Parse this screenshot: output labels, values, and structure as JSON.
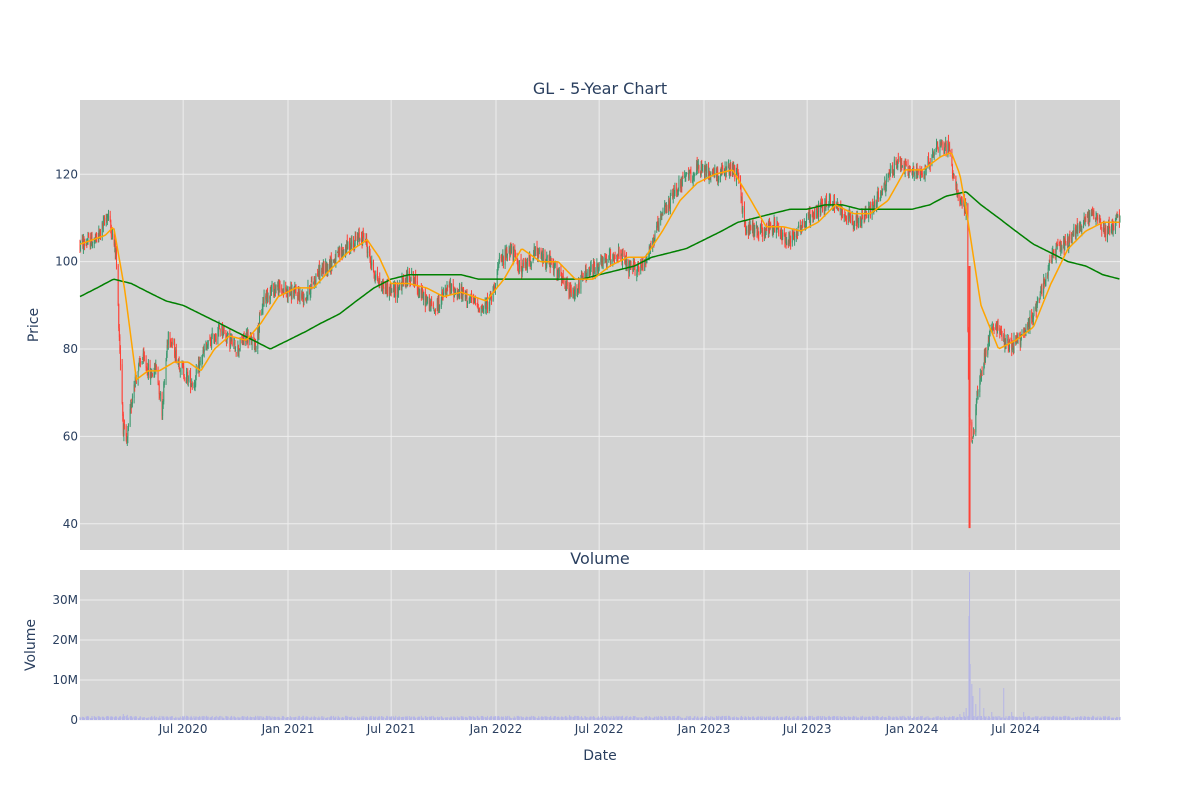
{
  "chart_data": [
    {
      "type": "candlestick",
      "title": "GL - 5-Year Chart",
      "xlabel": "",
      "ylabel": "Price",
      "ylim": [
        34,
        137
      ],
      "y_ticks": [
        40,
        60,
        80,
        100,
        120
      ],
      "x_range": [
        "2020-01-02",
        "2024-12-31"
      ],
      "grid": true,
      "colors": {
        "up": "#3d9970",
        "down": "#ff4136",
        "ma_short": "#ffa500",
        "ma_long": "#008000",
        "plot_bg": "#d3d3d3"
      },
      "series": [
        {
          "kind": "ohlc"
        },
        {
          "kind": "line"
        },
        {
          "kind": "line"
        }
      ],
      "price_path": [
        [
          "2020-01-02",
          104
        ],
        [
          "2020-02-01",
          105
        ],
        [
          "2020-02-20",
          111
        ],
        [
          "2020-03-05",
          102
        ],
        [
          "2020-03-12",
          80
        ],
        [
          "2020-03-18",
          62
        ],
        [
          "2020-03-24",
          58
        ],
        [
          "2020-04-05",
          72
        ],
        [
          "2020-04-20",
          78
        ],
        [
          "2020-05-05",
          74
        ],
        [
          "2020-05-15",
          76
        ],
        [
          "2020-05-25",
          66
        ],
        [
          "2020-06-05",
          84
        ],
        [
          "2020-06-20",
          78
        ],
        [
          "2020-07-05",
          74
        ],
        [
          "2020-07-20",
          72
        ],
        [
          "2020-08-05",
          79
        ],
        [
          "2020-08-20",
          82
        ],
        [
          "2020-09-05",
          85
        ],
        [
          "2020-09-20",
          82
        ],
        [
          "2020-10-05",
          80
        ],
        [
          "2020-10-20",
          83
        ],
        [
          "2020-11-05",
          81
        ],
        [
          "2020-11-20",
          92
        ],
        [
          "2020-12-10",
          94
        ],
        [
          "2021-01-05",
          93
        ],
        [
          "2021-02-01",
          92
        ],
        [
          "2021-02-20",
          97
        ],
        [
          "2021-03-20",
          100
        ],
        [
          "2021-04-20",
          104
        ],
        [
          "2021-05-15",
          106
        ],
        [
          "2021-05-28",
          99
        ],
        [
          "2021-06-10",
          95
        ],
        [
          "2021-07-05",
          93
        ],
        [
          "2021-08-05",
          97
        ],
        [
          "2021-08-25",
          92
        ],
        [
          "2021-09-15",
          89
        ],
        [
          "2021-10-10",
          94
        ],
        [
          "2021-11-10",
          92
        ],
        [
          "2021-12-10",
          89
        ],
        [
          "2021-12-25",
          92
        ],
        [
          "2022-01-05",
          99
        ],
        [
          "2022-01-25",
          103
        ],
        [
          "2022-02-15",
          98
        ],
        [
          "2022-03-10",
          102
        ],
        [
          "2022-04-05",
          100
        ],
        [
          "2022-04-25",
          96
        ],
        [
          "2022-05-15",
          92
        ],
        [
          "2022-06-05",
          97
        ],
        [
          "2022-07-01",
          99
        ],
        [
          "2022-08-01",
          102
        ],
        [
          "2022-08-25",
          98
        ],
        [
          "2022-09-15",
          99
        ],
        [
          "2022-10-01",
          104
        ],
        [
          "2022-10-25",
          112
        ],
        [
          "2022-11-20",
          118
        ],
        [
          "2022-12-20",
          121
        ],
        [
          "2023-01-20",
          120
        ],
        [
          "2023-02-20",
          121
        ],
        [
          "2023-03-05",
          119
        ],
        [
          "2023-03-12",
          108
        ],
        [
          "2023-04-05",
          107
        ],
        [
          "2023-05-05",
          108
        ],
        [
          "2023-05-28",
          105
        ],
        [
          "2023-06-20",
          108
        ],
        [
          "2023-07-20",
          112
        ],
        [
          "2023-08-10",
          114
        ],
        [
          "2023-09-05",
          111
        ],
        [
          "2023-10-01",
          109
        ],
        [
          "2023-10-20",
          112
        ],
        [
          "2023-11-10",
          116
        ],
        [
          "2023-12-05",
          123
        ],
        [
          "2024-01-05",
          120
        ],
        [
          "2024-01-25",
          121
        ],
        [
          "2024-02-15",
          127
        ],
        [
          "2024-03-05",
          126
        ],
        [
          "2024-03-20",
          116
        ],
        [
          "2024-04-05",
          112
        ],
        [
          "2024-04-10",
          65
        ],
        [
          "2024-04-16",
          58
        ],
        [
          "2024-04-25",
          70
        ],
        [
          "2024-05-10",
          80
        ],
        [
          "2024-05-25",
          86
        ],
        [
          "2024-06-10",
          82
        ],
        [
          "2024-06-25",
          81
        ],
        [
          "2024-07-15",
          83
        ],
        [
          "2024-08-01",
          88
        ],
        [
          "2024-08-20",
          96
        ],
        [
          "2024-09-10",
          103
        ],
        [
          "2024-10-05",
          105
        ],
        [
          "2024-10-25",
          109
        ],
        [
          "2024-11-15",
          111
        ],
        [
          "2024-12-05",
          107
        ],
        [
          "2024-12-31",
          110
        ]
      ],
      "ma_short_path": [
        [
          "2020-01-02",
          104
        ],
        [
          "2020-02-15",
          106
        ],
        [
          "2020-03-01",
          108
        ],
        [
          "2020-03-20",
          94
        ],
        [
          "2020-04-10",
          73
        ],
        [
          "2020-04-30",
          75
        ],
        [
          "2020-05-20",
          75
        ],
        [
          "2020-06-15",
          77
        ],
        [
          "2020-07-10",
          77
        ],
        [
          "2020-08-01",
          75
        ],
        [
          "2020-08-25",
          80
        ],
        [
          "2020-09-20",
          83
        ],
        [
          "2020-10-20",
          82
        ],
        [
          "2020-11-15",
          86
        ],
        [
          "2020-12-15",
          92
        ],
        [
          "2021-01-15",
          94
        ],
        [
          "2021-02-15",
          94
        ],
        [
          "2021-03-15",
          98
        ],
        [
          "2021-04-15",
          102
        ],
        [
          "2021-05-20",
          105
        ],
        [
          "2021-06-10",
          101
        ],
        [
          "2021-07-01",
          95
        ],
        [
          "2021-08-01",
          95
        ],
        [
          "2021-09-01",
          94
        ],
        [
          "2021-10-01",
          92
        ],
        [
          "2021-11-01",
          93
        ],
        [
          "2021-12-15",
          91
        ],
        [
          "2022-01-15",
          96
        ],
        [
          "2022-02-15",
          103
        ],
        [
          "2022-03-20",
          100
        ],
        [
          "2022-04-20",
          100
        ],
        [
          "2022-05-20",
          96
        ],
        [
          "2022-06-20",
          96
        ],
        [
          "2022-07-20",
          99
        ],
        [
          "2022-08-20",
          101
        ],
        [
          "2022-09-20",
          101
        ],
        [
          "2022-10-20",
          107
        ],
        [
          "2022-11-20",
          114
        ],
        [
          "2022-12-20",
          118
        ],
        [
          "2023-01-20",
          120
        ],
        [
          "2023-02-20",
          121
        ],
        [
          "2023-03-20",
          115
        ],
        [
          "2023-04-20",
          108
        ],
        [
          "2023-05-20",
          108
        ],
        [
          "2023-06-20",
          107
        ],
        [
          "2023-07-20",
          109
        ],
        [
          "2023-08-20",
          113
        ],
        [
          "2023-09-20",
          111
        ],
        [
          "2023-10-20",
          111
        ],
        [
          "2023-11-20",
          114
        ],
        [
          "2023-12-20",
          121
        ],
        [
          "2024-01-20",
          121
        ],
        [
          "2024-02-20",
          124
        ],
        [
          "2024-03-10",
          125
        ],
        [
          "2024-03-25",
          120
        ],
        [
          "2024-04-05",
          112
        ],
        [
          "2024-05-01",
          90
        ],
        [
          "2024-06-01",
          80
        ],
        [
          "2024-07-01",
          82
        ],
        [
          "2024-08-01",
          85
        ],
        [
          "2024-09-01",
          95
        ],
        [
          "2024-10-01",
          103
        ],
        [
          "2024-11-01",
          107
        ],
        [
          "2024-12-01",
          109
        ],
        [
          "2024-12-31",
          109
        ]
      ],
      "ma_long_path": [
        [
          "2020-01-02",
          92
        ],
        [
          "2020-02-01",
          94
        ],
        [
          "2020-03-01",
          96
        ],
        [
          "2020-04-01",
          95
        ],
        [
          "2020-05-01",
          93
        ],
        [
          "2020-06-01",
          91
        ],
        [
          "2020-07-01",
          90
        ],
        [
          "2020-08-01",
          88
        ],
        [
          "2020-09-01",
          86
        ],
        [
          "2020-10-01",
          84
        ],
        [
          "2020-11-01",
          82
        ],
        [
          "2020-12-01",
          80
        ],
        [
          "2021-01-01",
          82
        ],
        [
          "2021-02-01",
          84
        ],
        [
          "2021-03-01",
          86
        ],
        [
          "2021-04-01",
          88
        ],
        [
          "2021-05-01",
          91
        ],
        [
          "2021-06-01",
          94
        ],
        [
          "2021-07-01",
          96
        ],
        [
          "2021-08-01",
          97
        ],
        [
          "2021-09-01",
          97
        ],
        [
          "2021-10-01",
          97
        ],
        [
          "2021-11-01",
          97
        ],
        [
          "2021-12-01",
          96
        ],
        [
          "2022-01-01",
          96
        ],
        [
          "2022-02-01",
          96
        ],
        [
          "2022-03-01",
          96
        ],
        [
          "2022-04-01",
          96
        ],
        [
          "2022-05-01",
          96
        ],
        [
          "2022-06-01",
          96
        ],
        [
          "2022-07-01",
          97
        ],
        [
          "2022-08-01",
          98
        ],
        [
          "2022-09-01",
          99
        ],
        [
          "2022-10-01",
          101
        ],
        [
          "2022-11-01",
          102
        ],
        [
          "2022-12-01",
          103
        ],
        [
          "2023-01-01",
          105
        ],
        [
          "2023-02-01",
          107
        ],
        [
          "2023-03-01",
          109
        ],
        [
          "2023-04-01",
          110
        ],
        [
          "2023-05-01",
          111
        ],
        [
          "2023-06-01",
          112
        ],
        [
          "2023-07-01",
          112
        ],
        [
          "2023-08-01",
          113
        ],
        [
          "2023-09-01",
          113
        ],
        [
          "2023-10-01",
          112
        ],
        [
          "2023-11-01",
          112
        ],
        [
          "2023-12-01",
          112
        ],
        [
          "2024-01-01",
          112
        ],
        [
          "2024-02-01",
          113
        ],
        [
          "2024-03-01",
          115
        ],
        [
          "2024-04-05",
          116
        ],
        [
          "2024-05-01",
          113
        ],
        [
          "2024-06-01",
          110
        ],
        [
          "2024-07-01",
          107
        ],
        [
          "2024-08-01",
          104
        ],
        [
          "2024-09-01",
          102
        ],
        [
          "2024-10-01",
          100
        ],
        [
          "2024-11-01",
          99
        ],
        [
          "2024-12-01",
          97
        ],
        [
          "2024-12-31",
          96
        ]
      ]
    },
    {
      "type": "bar",
      "title": "Volume",
      "xlabel": "Date",
      "ylabel": "Volume",
      "ylim": [
        0,
        37500000
      ],
      "y_ticks": [
        0,
        10000000,
        20000000,
        30000000
      ],
      "y_tick_labels": [
        "0",
        "10M",
        "20M",
        "30M"
      ],
      "x_ticks": [
        "2020-07-01",
        "2021-01-01",
        "2021-07-01",
        "2022-01-01",
        "2022-07-01",
        "2023-01-01",
        "2023-07-01",
        "2024-01-01",
        "2024-07-01"
      ],
      "x_tick_labels": [
        "Jul 2020",
        "Jan 2021",
        "Jul 2021",
        "Jan 2022",
        "Jul 2022",
        "Jan 2023",
        "Jul 2023",
        "Jan 2024",
        "Jul 2024"
      ],
      "grid": true,
      "colors": {
        "bar": "#b4b4e6",
        "plot_bg": "#d3d3d3"
      },
      "baseline_volume": 700000,
      "volume_spikes": [
        [
          "2020-03-18",
          1500000
        ],
        [
          "2020-03-25",
          1300000
        ],
        [
          "2022-05-10",
          1200000
        ],
        [
          "2024-03-25",
          1500000
        ],
        [
          "2024-04-01",
          2000000
        ],
        [
          "2024-04-05",
          3000000
        ],
        [
          "2024-04-10",
          26000000
        ],
        [
          "2024-04-11",
          37000000
        ],
        [
          "2024-04-12",
          14000000
        ],
        [
          "2024-04-15",
          9000000
        ],
        [
          "2024-04-17",
          6000000
        ],
        [
          "2024-04-22",
          4000000
        ],
        [
          "2024-04-29",
          8000000
        ],
        [
          "2024-05-06",
          3000000
        ],
        [
          "2024-05-20",
          2000000
        ],
        [
          "2024-06-10",
          8000000
        ],
        [
          "2024-06-24",
          2000000
        ],
        [
          "2024-07-15",
          2000000
        ]
      ]
    }
  ]
}
